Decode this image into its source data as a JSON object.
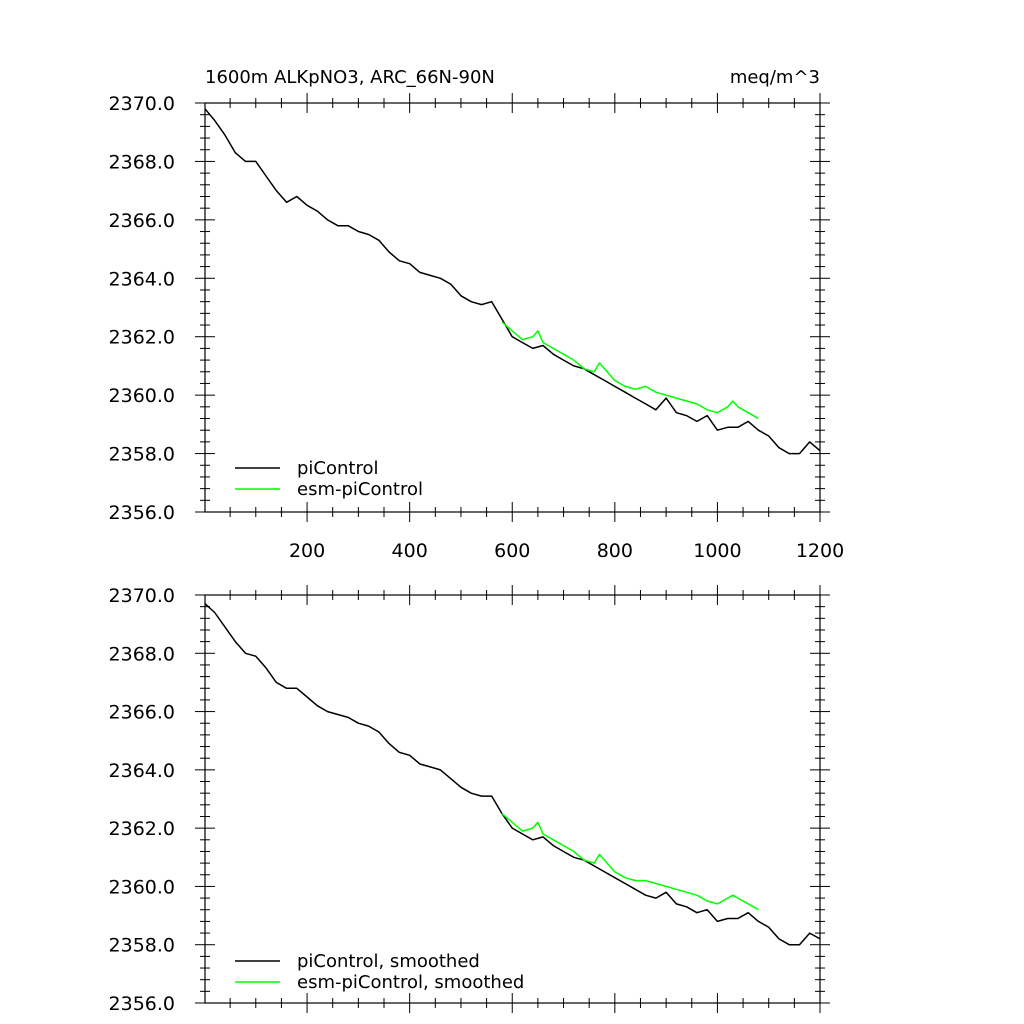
{
  "chart_data": [
    {
      "type": "line",
      "title": "1600m ALKpNO3, ARC_66N-90N",
      "units": "meq/m^3",
      "xlim": [
        1,
        1200
      ],
      "ylim": [
        2356.0,
        2370.0
      ],
      "x_ticks": [
        200,
        400,
        600,
        800,
        1000,
        1200
      ],
      "y_ticks": [
        2356.0,
        2358.0,
        2360.0,
        2362.0,
        2364.0,
        2366.0,
        2368.0,
        2370.0
      ],
      "y_tick_labels": [
        "2356.0",
        "2358.0",
        "2360.0",
        "2362.0",
        "2364.0",
        "2366.0",
        "2368.0",
        "2370.0"
      ],
      "x_tick_labels": [
        "200",
        "400",
        "600",
        "800",
        "1000",
        "1200"
      ],
      "legend_position": "bottom-left",
      "grid": false,
      "series": [
        {
          "name": "piControl",
          "color": "#000000",
          "x": [
            1,
            20,
            40,
            60,
            80,
            100,
            120,
            140,
            160,
            180,
            200,
            220,
            240,
            260,
            280,
            300,
            320,
            340,
            360,
            380,
            400,
            420,
            440,
            460,
            480,
            500,
            520,
            540,
            560,
            580,
            600,
            620,
            640,
            660,
            680,
            700,
            720,
            740,
            760,
            780,
            800,
            820,
            840,
            860,
            880,
            900,
            920,
            940,
            960,
            980,
            1000,
            1020,
            1040,
            1060,
            1080,
            1100,
            1120,
            1140,
            1160,
            1180,
            1200
          ],
          "y": [
            2369.8,
            2369.4,
            2368.9,
            2368.3,
            2368.0,
            2368.0,
            2367.5,
            2367.0,
            2366.6,
            2366.8,
            2366.5,
            2366.3,
            2366.0,
            2365.8,
            2365.8,
            2365.6,
            2365.5,
            2365.3,
            2364.9,
            2364.6,
            2364.5,
            2364.2,
            2364.1,
            2364.0,
            2363.8,
            2363.4,
            2363.2,
            2363.1,
            2363.2,
            2362.6,
            2362.0,
            2361.8,
            2361.6,
            2361.7,
            2361.4,
            2361.2,
            2361.0,
            2360.9,
            2360.7,
            2360.5,
            2360.3,
            2360.1,
            2359.9,
            2359.7,
            2359.5,
            2359.9,
            2359.4,
            2359.3,
            2359.1,
            2359.3,
            2358.8,
            2358.9,
            2358.9,
            2359.1,
            2358.8,
            2358.6,
            2358.2,
            2358.0,
            2358.0,
            2358.4,
            2358.1
          ]
        },
        {
          "name": "esm-piControl",
          "color": "#00ff00",
          "x": [
            580,
            600,
            620,
            640,
            650,
            660,
            680,
            700,
            720,
            740,
            760,
            770,
            780,
            800,
            820,
            840,
            860,
            880,
            900,
            920,
            940,
            960,
            980,
            1000,
            1020,
            1030,
            1040,
            1060,
            1080
          ],
          "y": [
            2362.5,
            2362.2,
            2361.9,
            2362.0,
            2362.2,
            2361.8,
            2361.6,
            2361.4,
            2361.2,
            2360.9,
            2360.8,
            2361.1,
            2360.9,
            2360.5,
            2360.3,
            2360.2,
            2360.3,
            2360.1,
            2360.0,
            2359.9,
            2359.8,
            2359.7,
            2359.5,
            2359.4,
            2359.6,
            2359.8,
            2359.6,
            2359.4,
            2359.2
          ]
        }
      ]
    },
    {
      "type": "line",
      "xlim": [
        1,
        1200
      ],
      "ylim": [
        2356.0,
        2370.0
      ],
      "x_ticks": [
        200,
        400,
        600,
        800,
        1000,
        1200
      ],
      "y_ticks": [
        2356.0,
        2358.0,
        2360.0,
        2362.0,
        2364.0,
        2366.0,
        2368.0,
        2370.0
      ],
      "y_tick_labels": [
        "2356.0",
        "2358.0",
        "2360.0",
        "2362.0",
        "2364.0",
        "2366.0",
        "2368.0",
        "2370.0"
      ],
      "legend_position": "bottom-left",
      "grid": false,
      "series": [
        {
          "name": "piControl, smoothed",
          "color": "#000000",
          "x": [
            1,
            20,
            40,
            60,
            80,
            100,
            120,
            140,
            160,
            180,
            200,
            220,
            240,
            260,
            280,
            300,
            320,
            340,
            360,
            380,
            400,
            420,
            440,
            460,
            480,
            500,
            520,
            540,
            560,
            580,
            600,
            620,
            640,
            660,
            680,
            700,
            720,
            740,
            760,
            780,
            800,
            820,
            840,
            860,
            880,
            900,
            920,
            940,
            960,
            980,
            1000,
            1020,
            1040,
            1060,
            1080,
            1100,
            1120,
            1140,
            1160,
            1180,
            1200
          ],
          "y": [
            2369.7,
            2369.4,
            2368.9,
            2368.4,
            2368.0,
            2367.9,
            2367.5,
            2367.0,
            2366.8,
            2366.8,
            2366.5,
            2366.2,
            2366.0,
            2365.9,
            2365.8,
            2365.6,
            2365.5,
            2365.3,
            2364.9,
            2364.6,
            2364.5,
            2364.2,
            2364.1,
            2364.0,
            2363.7,
            2363.4,
            2363.2,
            2363.1,
            2363.1,
            2362.5,
            2362.0,
            2361.8,
            2361.6,
            2361.7,
            2361.4,
            2361.2,
            2361.0,
            2360.9,
            2360.7,
            2360.5,
            2360.3,
            2360.1,
            2359.9,
            2359.7,
            2359.6,
            2359.8,
            2359.4,
            2359.3,
            2359.1,
            2359.2,
            2358.8,
            2358.9,
            2358.9,
            2359.1,
            2358.8,
            2358.6,
            2358.2,
            2358.0,
            2358.0,
            2358.4,
            2358.2
          ]
        },
        {
          "name": "esm-piControl, smoothed",
          "color": "#00ff00",
          "x": [
            580,
            600,
            620,
            640,
            650,
            660,
            680,
            700,
            720,
            740,
            760,
            770,
            780,
            800,
            820,
            840,
            860,
            880,
            900,
            920,
            940,
            960,
            980,
            1000,
            1020,
            1030,
            1040,
            1060,
            1080
          ],
          "y": [
            2362.5,
            2362.2,
            2361.9,
            2362.0,
            2362.2,
            2361.8,
            2361.6,
            2361.4,
            2361.2,
            2360.9,
            2360.8,
            2361.1,
            2360.9,
            2360.5,
            2360.3,
            2360.2,
            2360.2,
            2360.1,
            2360.0,
            2359.9,
            2359.8,
            2359.7,
            2359.5,
            2359.4,
            2359.6,
            2359.7,
            2359.6,
            2359.4,
            2359.2
          ]
        }
      ]
    }
  ]
}
